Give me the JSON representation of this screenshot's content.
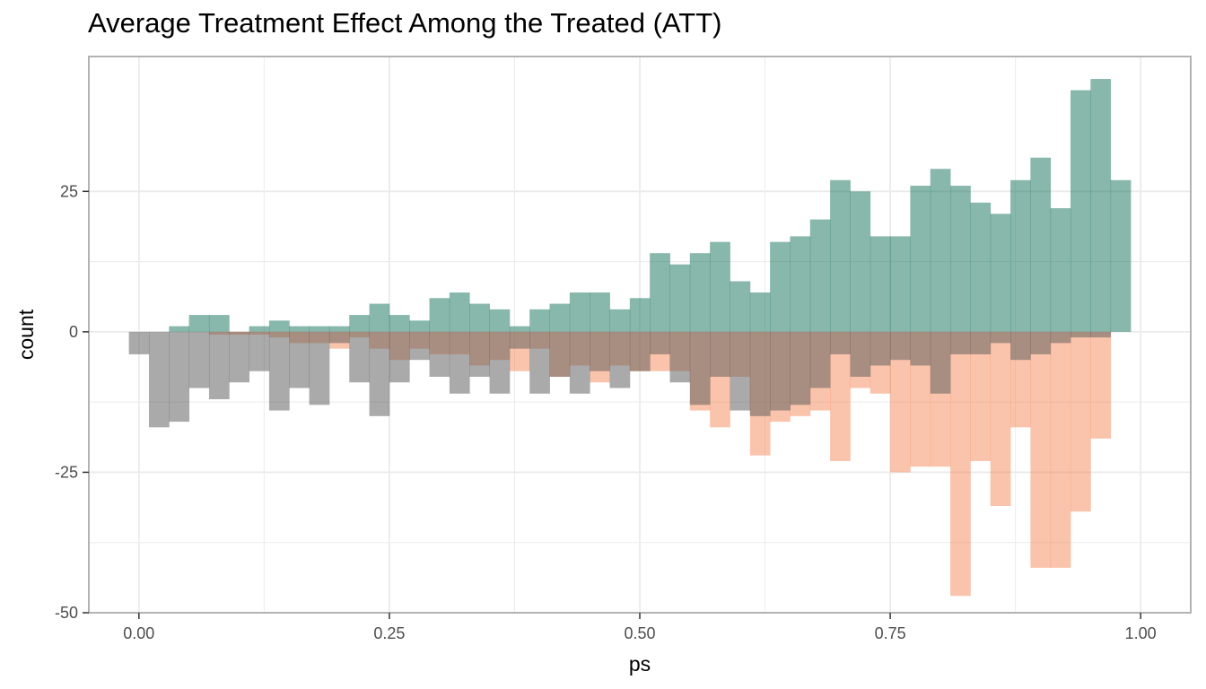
{
  "chart_data": {
    "type": "bar",
    "subtype": "mirrored-histogram",
    "title": "Average Treatment Effect Among the Treated (ATT)",
    "xlabel": "ps",
    "ylabel": "count",
    "xlim": [
      -0.05,
      1.05
    ],
    "ylim": [
      -50,
      49
    ],
    "x_ticks": [
      {
        "value": 0.0,
        "label": "0.00"
      },
      {
        "value": 0.25,
        "label": "0.25"
      },
      {
        "value": 0.5,
        "label": "0.50"
      },
      {
        "value": 0.75,
        "label": "0.75"
      },
      {
        "value": 1.0,
        "label": "1.00"
      }
    ],
    "y_ticks": [
      {
        "value": 25,
        "label": "25"
      },
      {
        "value": 0,
        "label": "0"
      },
      {
        "value": -25,
        "label": "-25"
      },
      {
        "value": -50,
        "label": "-50"
      }
    ],
    "grid": true,
    "legend": "none",
    "bin_start": -0.01,
    "bin_width": 0.02,
    "series": [
      {
        "color": "#12705a",
        "opacity": 0.5,
        "direction": "up",
        "values": [
          0,
          0,
          1,
          3,
          3,
          0,
          1,
          2,
          1,
          1,
          1,
          3,
          5,
          3,
          2,
          6,
          7,
          5,
          4,
          1,
          4,
          5,
          7,
          7,
          4,
          6,
          14,
          12,
          14,
          16,
          9,
          7,
          16,
          17,
          20,
          27,
          25,
          17,
          17,
          26,
          29,
          26,
          23,
          21,
          27,
          31,
          22,
          43,
          45,
          27
        ]
      },
      {
        "color": "#f47c48",
        "opacity": 0.45,
        "direction": "down",
        "values": [
          0,
          0,
          0,
          0,
          0.5,
          0.5,
          0.5,
          1,
          2,
          2,
          3,
          1,
          3,
          5,
          3,
          4,
          4,
          6,
          5,
          7,
          3,
          8,
          6,
          9,
          6,
          7,
          7,
          7,
          14,
          17,
          8,
          22,
          16,
          15,
          14,
          23,
          10,
          11,
          25,
          24,
          24,
          47,
          23,
          31,
          17,
          42,
          42,
          32,
          19,
          0
        ]
      },
      {
        "color": "#555555",
        "opacity": 0.5,
        "direction": "down",
        "values": [
          4,
          17,
          16,
          10,
          12,
          9,
          7,
          14,
          10,
          13,
          2,
          9,
          15,
          9,
          5,
          8,
          11,
          8,
          11,
          3,
          11,
          8,
          11,
          7,
          10,
          7,
          4,
          9,
          13,
          8,
          14,
          15,
          14,
          13,
          10,
          4,
          8,
          6,
          5,
          6,
          11,
          4,
          4,
          2,
          5,
          4,
          2,
          1,
          1,
          0
        ]
      }
    ]
  }
}
